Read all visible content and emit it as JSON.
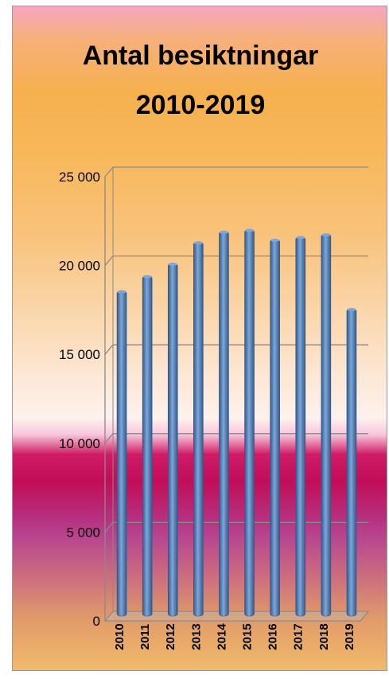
{
  "chart_data": {
    "type": "bar",
    "title_lines": [
      "Antal besiktningar",
      "2010-2019"
    ],
    "categories": [
      "2010",
      "2011",
      "2012",
      "2013",
      "2014",
      "2015",
      "2016",
      "2017",
      "2018",
      "2019"
    ],
    "values": [
      18300,
      19150,
      19850,
      21050,
      21650,
      21750,
      21200,
      21350,
      21500,
      17300
    ],
    "yticks": [
      "0",
      "5 000",
      "10 000",
      "15 000",
      "20 000",
      "25 000"
    ],
    "ylim": [
      0,
      25000
    ],
    "grid": true,
    "bar_color": "#4f81bd",
    "bar_highlight": "#7fa6d6",
    "bar_shadow": "#2f5a8e"
  }
}
